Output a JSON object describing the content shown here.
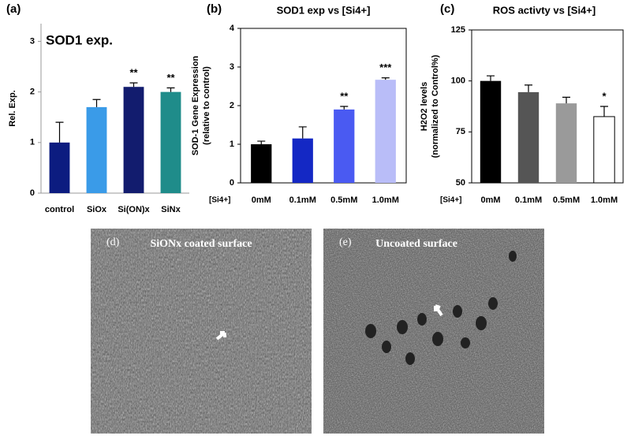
{
  "chart_data": [
    {
      "type": "bar",
      "panel": "(a)",
      "title": "SOD1 exp.",
      "y_label": [
        "Rel. Exp."
      ],
      "categories": [
        "control",
        "SiOx",
        "Si(ON)x",
        "SiNx"
      ],
      "values": [
        1.0,
        1.7,
        2.1,
        2.0
      ],
      "errors": [
        0.4,
        0.15,
        0.08,
        0.08
      ],
      "significance": [
        null,
        null,
        "**",
        "**"
      ],
      "colors": [
        "#0c1c80",
        "#3a9be8",
        "#121c6e",
        "#1f8c8a"
      ],
      "ylim": [
        0,
        3.35
      ],
      "yticks": [
        0,
        1,
        2,
        3
      ],
      "frame": false
    },
    {
      "type": "bar",
      "panel": "(b)",
      "title": "SOD1 exp vs [Si4+]",
      "y_label": [
        "SOD-1 Gene Expression",
        "(relative to control)"
      ],
      "x_prefix": "[Si4+]",
      "categories": [
        "0mM",
        "0.1mM",
        "0.5mM",
        "1.0mM"
      ],
      "values": [
        1.0,
        1.15,
        1.9,
        2.67
      ],
      "errors": [
        0.08,
        0.3,
        0.08,
        0.05
      ],
      "significance": [
        null,
        null,
        "**",
        "***"
      ],
      "colors": [
        "#000000",
        "#1428c4",
        "#4a5af2",
        "#b9bdf8"
      ],
      "ylim": [
        0,
        4
      ],
      "yticks": [
        0,
        1,
        2,
        3,
        4
      ],
      "frame": true
    },
    {
      "type": "bar",
      "panel": "(c)",
      "title": "ROS activty vs [Si4+]",
      "y_label": [
        "H2O2 levels",
        "(normalized to Control%)"
      ],
      "x_prefix": "[Si4+]",
      "categories": [
        "0mM",
        "0.1mM",
        "0.5mM",
        "1.0mM"
      ],
      "values": [
        100,
        94.5,
        89,
        82.5
      ],
      "errors": [
        2.5,
        3.5,
        3,
        5
      ],
      "significance": [
        null,
        null,
        null,
        "*"
      ],
      "colors": [
        "#000000",
        "#555555",
        "#9a9a9a",
        "#ffffff"
      ],
      "ylim": [
        50,
        125
      ],
      "yticks": [
        50,
        75,
        100,
        125
      ],
      "frame": true
    }
  ],
  "images": [
    {
      "panel": "(d)",
      "caption": "SiONx coated surface"
    },
    {
      "panel": "(e)",
      "caption": "Uncoated surface"
    }
  ]
}
